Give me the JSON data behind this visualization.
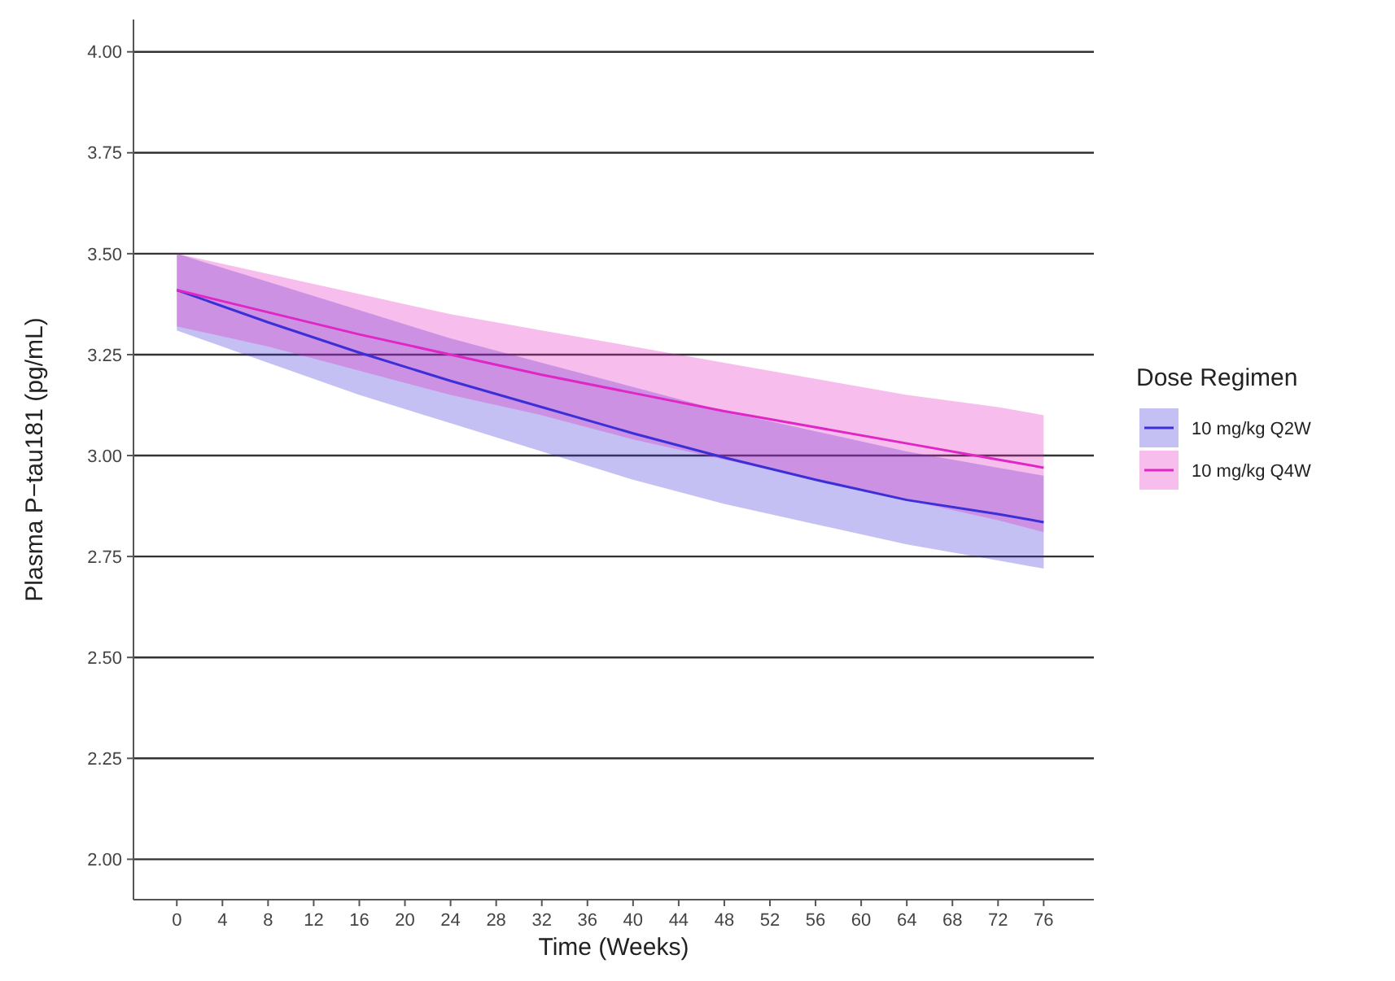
{
  "chart_data": {
    "type": "line",
    "xlabel": "Time (Weeks)",
    "ylabel": "Plasma P−tau181 (pg/mL)",
    "legend_title": "Dose Regimen",
    "legend": "right",
    "grid": "y",
    "xlim": [
      -3.8,
      80.4
    ],
    "ylim": [
      1.9,
      4.08
    ],
    "xticks": [
      0,
      4,
      8,
      12,
      16,
      20,
      24,
      28,
      32,
      36,
      40,
      44,
      48,
      52,
      56,
      60,
      64,
      68,
      72,
      76
    ],
    "yticks": [
      {
        "value": 2,
        "label": "2.00"
      },
      {
        "value": 2.25,
        "label": "2.25"
      },
      {
        "value": 2.5,
        "label": "2.50"
      },
      {
        "value": 2.75,
        "label": "2.75"
      },
      {
        "value": 3,
        "label": "3.00"
      },
      {
        "value": 3.25,
        "label": "3.25"
      },
      {
        "value": 3.5,
        "label": "3.50"
      },
      {
        "value": 3.75,
        "label": "3.75"
      },
      {
        "value": 4,
        "label": "4.00"
      }
    ],
    "x": [
      0,
      8,
      16,
      24,
      32,
      40,
      48,
      56,
      64,
      72,
      76
    ],
    "series": [
      {
        "name": "10 mg/kg Q2W",
        "color": "#3b2fd8",
        "values": [
          3.41,
          3.33,
          3.255,
          3.185,
          3.12,
          3.055,
          2.995,
          2.94,
          2.89,
          2.855,
          2.835
        ],
        "lower": [
          3.31,
          3.23,
          3.15,
          3.08,
          3.01,
          2.94,
          2.88,
          2.83,
          2.78,
          2.74,
          2.72
        ],
        "upper": [
          3.5,
          3.43,
          3.36,
          3.29,
          3.23,
          3.17,
          3.11,
          3.06,
          3.01,
          2.97,
          2.95
        ]
      },
      {
        "name": "10 mg/kg Q4W",
        "color": "#e026c4",
        "values": [
          3.41,
          3.355,
          3.3,
          3.25,
          3.2,
          3.155,
          3.11,
          3.07,
          3.03,
          2.99,
          2.97
        ],
        "lower": [
          3.32,
          3.27,
          3.21,
          3.15,
          3.1,
          3.04,
          2.99,
          2.94,
          2.89,
          2.84,
          2.81
        ],
        "upper": [
          3.5,
          3.45,
          3.4,
          3.35,
          3.31,
          3.27,
          3.23,
          3.19,
          3.15,
          3.12,
          3.1
        ]
      }
    ]
  }
}
